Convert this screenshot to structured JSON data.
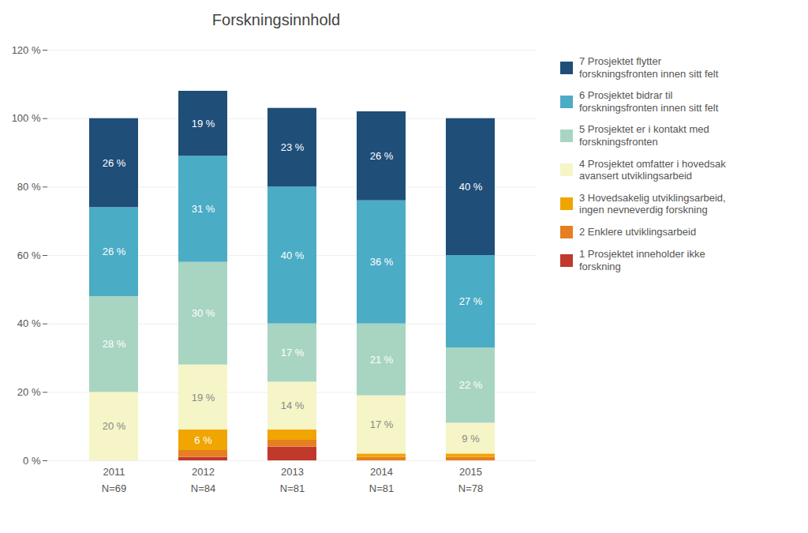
{
  "chart_data": {
    "type": "bar",
    "title": "Forskningsinnhold",
    "stacked": true,
    "data_labels": true,
    "grid": true,
    "legend": "right",
    "categories": [
      "2011",
      "2012",
      "2013",
      "2014",
      "2015"
    ],
    "annotations": [
      {
        "x": "2011",
        "text": "N=69"
      },
      {
        "x": "2012",
        "text": "N=84"
      },
      {
        "x": "2013",
        "text": "N=81"
      },
      {
        "x": "2014",
        "text": "N=81"
      },
      {
        "x": "2015",
        "text": "N=78"
      }
    ],
    "series": [
      {
        "name": "1 Prosjektet inneholder ikke\nforskning",
        "color": "#c0392b",
        "values": [
          0,
          1,
          4,
          0,
          0
        ],
        "value_labels": [
          null,
          null,
          null,
          null,
          null
        ]
      },
      {
        "name": "2 Enklere utviklingsarbeid",
        "color": "#e67e22",
        "values": [
          0,
          2,
          2,
          1,
          1
        ],
        "value_labels": [
          null,
          null,
          null,
          null,
          null
        ]
      },
      {
        "name": "3 Hovedsakelig utviklingsarbeid,\ningen nevneverdig forskning",
        "color": "#f0a500",
        "values": [
          0,
          6,
          3,
          1,
          1
        ],
        "value_labels": [
          null,
          "6 %",
          null,
          null,
          null
        ]
      },
      {
        "name": "4 Prosjektet omfatter i hovedsak\navansert utviklingsarbeid",
        "color": "#f5f5c8",
        "values": [
          20,
          19,
          14,
          17,
          9
        ],
        "value_labels": [
          "20 %",
          "19 %",
          "14 %",
          "17 %",
          "9 %"
        ]
      },
      {
        "name": "5 Prosjektet er i kontakt med\nforskningsfronten",
        "color": "#a8d5c2",
        "values": [
          28,
          30,
          17,
          21,
          22
        ],
        "value_labels": [
          "28 %",
          "30 %",
          "17 %",
          "21 %",
          "22 %"
        ]
      },
      {
        "name": "6 Prosjektet bidrar til\nforskningsfronten innen sitt felt",
        "color": "#4bacc6",
        "values": [
          26,
          31,
          40,
          36,
          27
        ],
        "value_labels": [
          "26 %",
          "31 %",
          "40 %",
          "36 %",
          "27 %"
        ]
      },
      {
        "name": "7 Prosjektet flytter\nforskningsfronten innen sitt felt",
        "color": "#1f4e79",
        "values": [
          26,
          19,
          23,
          26,
          40
        ],
        "value_labels": [
          "26 %",
          "19 %",
          "23 %",
          "26 %",
          "40 %"
        ]
      }
    ],
    "ylim": [
      0,
      120
    ],
    "yticks": [
      {
        "value": 0,
        "label": "0 %"
      },
      {
        "value": 20,
        "label": "20 %"
      },
      {
        "value": 40,
        "label": "40 %"
      },
      {
        "value": 60,
        "label": "60 %"
      },
      {
        "value": 80,
        "label": "80 %"
      },
      {
        "value": 100,
        "label": "100 %"
      },
      {
        "value": 120,
        "label": "120 %"
      }
    ]
  }
}
